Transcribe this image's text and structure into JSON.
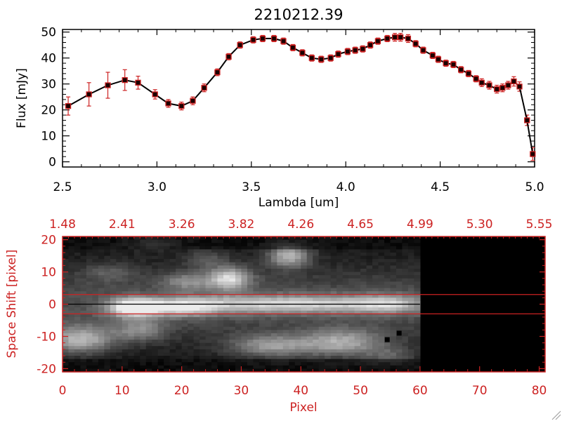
{
  "chart_data": [
    {
      "type": "line",
      "title": "2210212.39",
      "xlabel": "Lambda [um]",
      "ylabel": "Flux [mJy]",
      "xlim": [
        2.5,
        5.0
      ],
      "ylim": [
        -2,
        51
      ],
      "x_ticks": [
        "2.5",
        "3.0",
        "3.5",
        "4.0",
        "4.5",
        "5.0"
      ],
      "y_ticks": [
        "0",
        "10",
        "20",
        "30",
        "40",
        "50"
      ],
      "grid": false,
      "colors": {
        "line": "#000000",
        "marker": "#cc2222",
        "errorbar": "#cc2222"
      },
      "series": [
        {
          "x": [
            2.53,
            2.64,
            2.74,
            2.83,
            2.9,
            2.99,
            3.06,
            3.13,
            3.19,
            3.25,
            3.32,
            3.38,
            3.44,
            3.51,
            3.56,
            3.62,
            3.67,
            3.72,
            3.77,
            3.82,
            3.87,
            3.92,
            3.96,
            4.01,
            4.05,
            4.09,
            4.13,
            4.17,
            4.22,
            4.26,
            4.29,
            4.33,
            4.37,
            4.41,
            4.46,
            4.49,
            4.53,
            4.57,
            4.61,
            4.65,
            4.69,
            4.72,
            4.76,
            4.8,
            4.83,
            4.86,
            4.89,
            4.92,
            4.96,
            4.99
          ],
          "y": [
            21.5,
            26,
            29.5,
            31.5,
            30.5,
            26,
            22.5,
            21.5,
            23.5,
            28.5,
            34.5,
            40.5,
            45,
            47,
            47.5,
            47.5,
            46.5,
            44,
            42,
            40,
            39.5,
            40,
            41.5,
            42.5,
            43,
            43.5,
            45,
            46.5,
            47.5,
            48,
            48,
            47.5,
            45.5,
            43,
            41,
            39.5,
            38,
            37.5,
            35.5,
            34,
            32,
            30.5,
            29.5,
            28,
            28.5,
            29.5,
            31,
            29,
            16,
            3
          ],
          "yerr": [
            3.5,
            4.5,
            5,
            4,
            2.5,
            1.8,
            1.5,
            1.5,
            1.5,
            1.5,
            1.3,
            1.2,
            1.2,
            1.2,
            1.2,
            1.2,
            1.2,
            1.2,
            1.2,
            1.2,
            1.2,
            1.2,
            1.2,
            1.2,
            1.2,
            1.2,
            1.2,
            1.2,
            1.2,
            1.5,
            1.5,
            1.5,
            1.2,
            1.2,
            1.2,
            1.2,
            1.2,
            1.2,
            1.2,
            1.2,
            1.2,
            1.5,
            1.5,
            1.5,
            1.5,
            1.5,
            1.8,
            1.8,
            2,
            2.5
          ]
        }
      ]
    },
    {
      "type": "heatmap",
      "xlabel": "Pixel",
      "ylabel": "Space Shift [pixel]",
      "xlim": [
        0,
        81
      ],
      "ylim": [
        -21,
        21
      ],
      "x_ticks": [
        "0",
        "10",
        "20",
        "30",
        "40",
        "50",
        "60",
        "70",
        "80"
      ],
      "y_ticks": [
        "-20",
        "-10",
        "0",
        "10",
        "20"
      ],
      "top_axis_ticks": [
        "1.48",
        "2.41",
        "3.26",
        "3.82",
        "4.26",
        "4.65",
        "4.99",
        "5.30",
        "5.55"
      ],
      "data_extent_pixel": 60,
      "horizontal_lines": [
        3,
        -3
      ],
      "center_line": 0,
      "bad_pixels": [
        [
          54.5,
          -11
        ],
        [
          56.5,
          -9
        ]
      ],
      "blobs": [
        {
          "x": 12,
          "y": -1,
          "amp": 0.95,
          "sx": 3.0,
          "sy": 2.0
        },
        {
          "x": 20,
          "y": -1,
          "amp": 0.55,
          "sx": 4.0,
          "sy": 2.0
        },
        {
          "x": 30,
          "y": 0,
          "amp": 0.45,
          "sx": 8.0,
          "sy": 2.0
        },
        {
          "x": 45,
          "y": 0,
          "amp": 0.45,
          "sx": 8.0,
          "sy": 2.0
        },
        {
          "x": 55,
          "y": 0,
          "amp": 0.4,
          "sx": 4.0,
          "sy": 2.0
        },
        {
          "x": 28,
          "y": 8,
          "amp": 0.7,
          "sx": 2.5,
          "sy": 2.5
        },
        {
          "x": 38,
          "y": 15,
          "amp": 0.65,
          "sx": 2.5,
          "sy": 2.5
        },
        {
          "x": 21,
          "y": 7,
          "amp": 0.35,
          "sx": 3.0,
          "sy": 2.0
        },
        {
          "x": 24,
          "y": 14,
          "amp": 0.25,
          "sx": 2.5,
          "sy": 2.0
        },
        {
          "x": 15,
          "y": 19,
          "amp": 0.25,
          "sx": 3.0,
          "sy": 1.5
        },
        {
          "x": 3,
          "y": -11,
          "amp": 0.6,
          "sx": 4.0,
          "sy": 3.0
        },
        {
          "x": 13,
          "y": -8,
          "amp": 0.35,
          "sx": 3.0,
          "sy": 2.5
        },
        {
          "x": 35,
          "y": -13,
          "amp": 0.5,
          "sx": 5.0,
          "sy": 2.5
        },
        {
          "x": 47,
          "y": -12,
          "amp": 0.55,
          "sx": 5.0,
          "sy": 3.0
        },
        {
          "x": 55,
          "y": -16,
          "amp": 0.25,
          "sx": 3.0,
          "sy": 2.0
        },
        {
          "x": 8,
          "y": 10,
          "amp": 0.2,
          "sx": 3.0,
          "sy": 2.0
        }
      ],
      "colors": {
        "frame": "#cc2222",
        "labels": "#cc2222",
        "lines": "#cc2222"
      }
    }
  ]
}
